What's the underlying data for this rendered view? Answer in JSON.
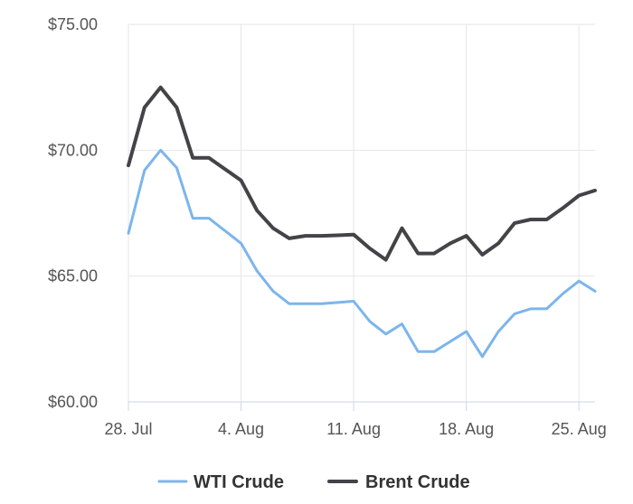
{
  "chart_data": {
    "type": "line",
    "title": "",
    "xlabel": "",
    "ylabel": "",
    "x_tick_labels": [
      "28. Jul",
      "4. Aug",
      "11. Aug",
      "18. Aug",
      "25. Aug"
    ],
    "y_tick_labels": [
      "$60.00",
      "$65.00",
      "$70.00",
      "$75.00"
    ],
    "ylim": [
      60,
      75
    ],
    "x": [
      "2025-07-28",
      "2025-07-29",
      "2025-07-30",
      "2025-07-31",
      "2025-08-01",
      "2025-08-02",
      "2025-08-03",
      "2025-08-04",
      "2025-08-05",
      "2025-08-06",
      "2025-08-07",
      "2025-08-08",
      "2025-08-09",
      "2025-08-10",
      "2025-08-11",
      "2025-08-12",
      "2025-08-13",
      "2025-08-14",
      "2025-08-15",
      "2025-08-16",
      "2025-08-17",
      "2025-08-18",
      "2025-08-19",
      "2025-08-20",
      "2025-08-21",
      "2025-08-22",
      "2025-08-23",
      "2025-08-24",
      "2025-08-25",
      "2025-08-26"
    ],
    "series": [
      {
        "name": "WTI Crude",
        "color": "#7cb5ec",
        "values": [
          66.7,
          69.2,
          70.0,
          69.3,
          67.3,
          67.3,
          66.8,
          66.3,
          65.2,
          64.4,
          63.9,
          63.9,
          63.9,
          63.95,
          64.0,
          63.2,
          62.7,
          63.1,
          62.0,
          62.0,
          62.4,
          62.8,
          61.8,
          62.8,
          63.5,
          63.7,
          63.7,
          64.3,
          64.8,
          64.4
        ]
      },
      {
        "name": "Brent Crude",
        "color": "#434348",
        "values": [
          69.4,
          71.7,
          72.5,
          71.7,
          69.7,
          69.7,
          69.25,
          68.8,
          67.6,
          66.9,
          66.5,
          66.6,
          66.6,
          66.62,
          66.65,
          66.1,
          65.65,
          66.9,
          65.9,
          65.9,
          66.3,
          66.6,
          65.85,
          66.3,
          67.1,
          67.25,
          67.25,
          67.7,
          68.2,
          68.4
        ]
      }
    ],
    "grid": true,
    "legend_position": "bottom"
  }
}
